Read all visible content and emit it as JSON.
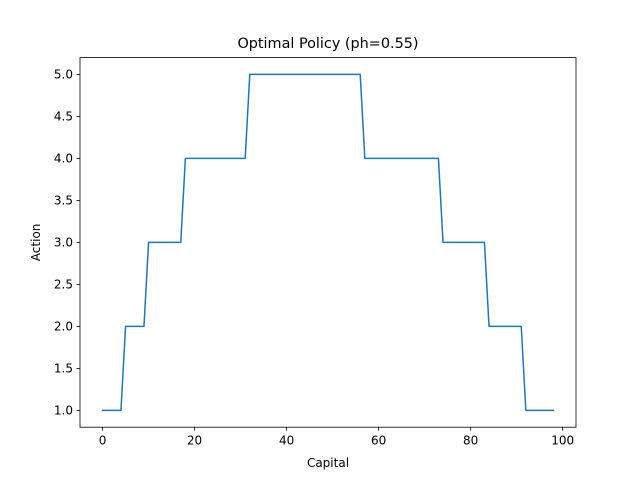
{
  "chart_data": {
    "type": "line",
    "title": "Optimal Policy (ph=0.55)",
    "xlabel": "Capital",
    "ylabel": "Action",
    "xlim": [
      -4.9,
      102.9
    ],
    "ylim": [
      0.8,
      5.2
    ],
    "xticks": [
      0,
      20,
      40,
      60,
      80,
      100
    ],
    "xtick_labels": [
      "0",
      "20",
      "40",
      "60",
      "80",
      "100"
    ],
    "yticks": [
      1.0,
      1.5,
      2.0,
      2.5,
      3.0,
      3.5,
      4.0,
      4.5,
      5.0
    ],
    "ytick_labels": [
      "1.0",
      "1.5",
      "2.0",
      "2.5",
      "3.0",
      "3.5",
      "4.0",
      "4.5",
      "5.0"
    ],
    "grid": false,
    "series": [
      {
        "color": "#1f77b4",
        "x": [
          0,
          4,
          5,
          9,
          10,
          17,
          18,
          31,
          32,
          56,
          57,
          73,
          74,
          83,
          84,
          91,
          92,
          98
        ],
        "y": [
          1,
          1,
          2,
          2,
          3,
          3,
          4,
          4,
          5,
          5,
          4,
          4,
          3,
          3,
          2,
          2,
          1,
          1
        ]
      }
    ]
  }
}
